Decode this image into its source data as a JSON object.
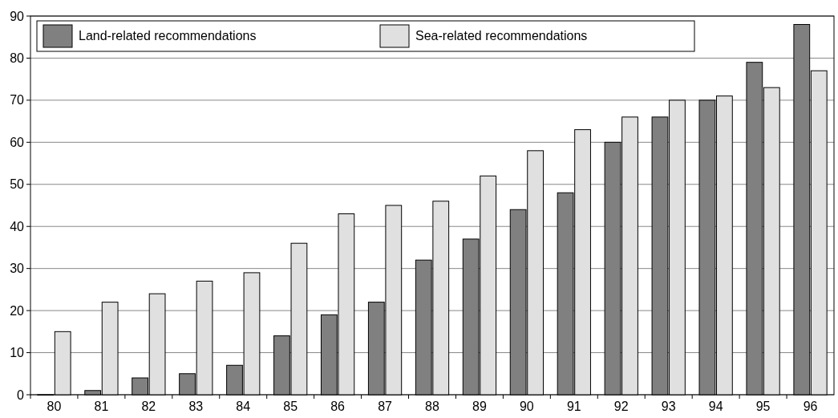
{
  "chart_data": {
    "type": "bar",
    "categories": [
      "80",
      "81",
      "82",
      "83",
      "84",
      "85",
      "86",
      "87",
      "88",
      "89",
      "90",
      "91",
      "92",
      "93",
      "94",
      "95",
      "96"
    ],
    "series": [
      {
        "name": "Land-related recommendations",
        "color": "#808080",
        "values": [
          0,
          1,
          4,
          5,
          7,
          14,
          19,
          22,
          32,
          37,
          44,
          48,
          60,
          66,
          70,
          79,
          88
        ]
      },
      {
        "name": "Sea-related recommendations",
        "color": "#e0e0e0",
        "values": [
          15,
          22,
          24,
          27,
          29,
          36,
          43,
          45,
          46,
          52,
          58,
          63,
          66,
          70,
          71,
          73,
          77
        ]
      }
    ],
    "ylim": [
      0,
      90
    ],
    "yticks": [
      0,
      10,
      20,
      30,
      40,
      50,
      60,
      70,
      80,
      90
    ],
    "grid": "y",
    "legend": "top left"
  }
}
